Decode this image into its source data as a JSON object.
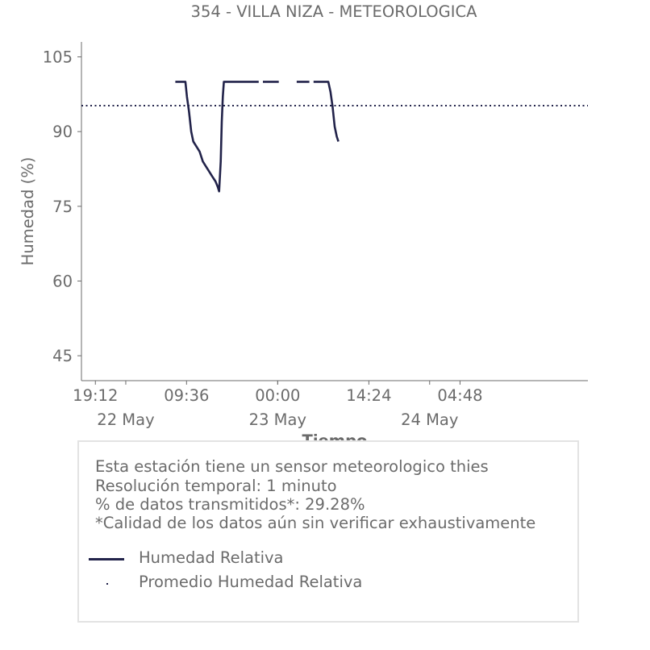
{
  "chart_data": {
    "type": "line",
    "title": "354 - VILLA NIZA - METEOROLOGICA",
    "xlabel": "Tiempo",
    "ylabel": "Humedad (%)",
    "ylim": [
      40,
      108
    ],
    "yticks": [
      45,
      60,
      75,
      90,
      105
    ],
    "x_range": [
      "2022-05-21T17:00",
      "2022-05-25T01:00"
    ],
    "xticks": [
      {
        "t": "2022-05-21T19:12",
        "label": "19:12"
      },
      {
        "t": "2022-05-22T09:36",
        "label": "09:36"
      },
      {
        "t": "2022-05-23T00:00",
        "label": "00:00"
      },
      {
        "t": "2022-05-23T14:24",
        "label": "14:24"
      },
      {
        "t": "2022-05-24T04:48",
        "label": "04:48"
      }
    ],
    "day_ticks": [
      {
        "t": "2022-05-22T00:00",
        "label": "22 May"
      },
      {
        "t": "2022-05-23T00:00",
        "label": "23 May"
      },
      {
        "t": "2022-05-24T00:00",
        "label": "24 May"
      }
    ],
    "grid": false,
    "series": [
      {
        "name": "Humedad Relativa",
        "color": "#22234a",
        "style": "solid",
        "segments": [
          [
            [
              "2022-05-22T07:50",
              100
            ],
            [
              "2022-05-22T09:00",
              100
            ],
            [
              "2022-05-22T09:25",
              100
            ],
            [
              "2022-05-22T09:40",
              97
            ],
            [
              "2022-05-22T10:00",
              94
            ],
            [
              "2022-05-22T10:20",
              90
            ],
            [
              "2022-05-22T10:40",
              88
            ],
            [
              "2022-05-22T11:10",
              87
            ],
            [
              "2022-05-22T11:40",
              86
            ],
            [
              "2022-05-22T12:10",
              84
            ],
            [
              "2022-05-22T12:40",
              83
            ],
            [
              "2022-05-22T13:10",
              82
            ],
            [
              "2022-05-22T13:40",
              81
            ],
            [
              "2022-05-22T14:10",
              80
            ],
            [
              "2022-05-22T14:30",
              79
            ],
            [
              "2022-05-22T14:45",
              78
            ],
            [
              "2022-05-22T15:00",
              84
            ],
            [
              "2022-05-22T15:10",
              92
            ],
            [
              "2022-05-22T15:20",
              97
            ],
            [
              "2022-05-22T15:30",
              100
            ],
            [
              "2022-05-22T17:00",
              100
            ],
            [
              "2022-05-22T19:00",
              100
            ],
            [
              "2022-05-22T21:00",
              100
            ]
          ],
          [
            [
              "2022-05-22T21:40",
              100
            ],
            [
              "2022-05-23T00:10",
              100
            ]
          ],
          [
            [
              "2022-05-23T03:00",
              100
            ],
            [
              "2022-05-23T05:00",
              100
            ]
          ],
          [
            [
              "2022-05-23T05:40",
              100
            ],
            [
              "2022-05-23T08:00",
              100
            ],
            [
              "2022-05-23T08:20",
              98
            ],
            [
              "2022-05-23T08:40",
              95
            ],
            [
              "2022-05-23T09:00",
              91
            ],
            [
              "2022-05-23T09:20",
              89
            ],
            [
              "2022-05-23T09:35",
              88
            ]
          ]
        ]
      },
      {
        "name": "Promedio Humedad Relativa",
        "color": "#22234a",
        "style": "dotted",
        "value": 95.2
      }
    ]
  },
  "info": {
    "lines": [
      "Esta estación tiene un sensor meteorologico thies",
      "Resolución temporal: 1 minuto",
      "% de datos transmitidos*: 29.28%",
      "*Calidad de los datos aún sin verificar exhaustivamente"
    ]
  },
  "legend": [
    {
      "label": "Humedad Relativa",
      "marker": "line",
      "color": "#22234a"
    },
    {
      "label": "Promedio Humedad Relativa",
      "marker": "dot",
      "color": "#22234a"
    }
  ],
  "colors": {
    "text": "#6b6b6b",
    "axis": "#6b6b6b",
    "series": "#22234a",
    "box_border": "#e3e3e3"
  }
}
